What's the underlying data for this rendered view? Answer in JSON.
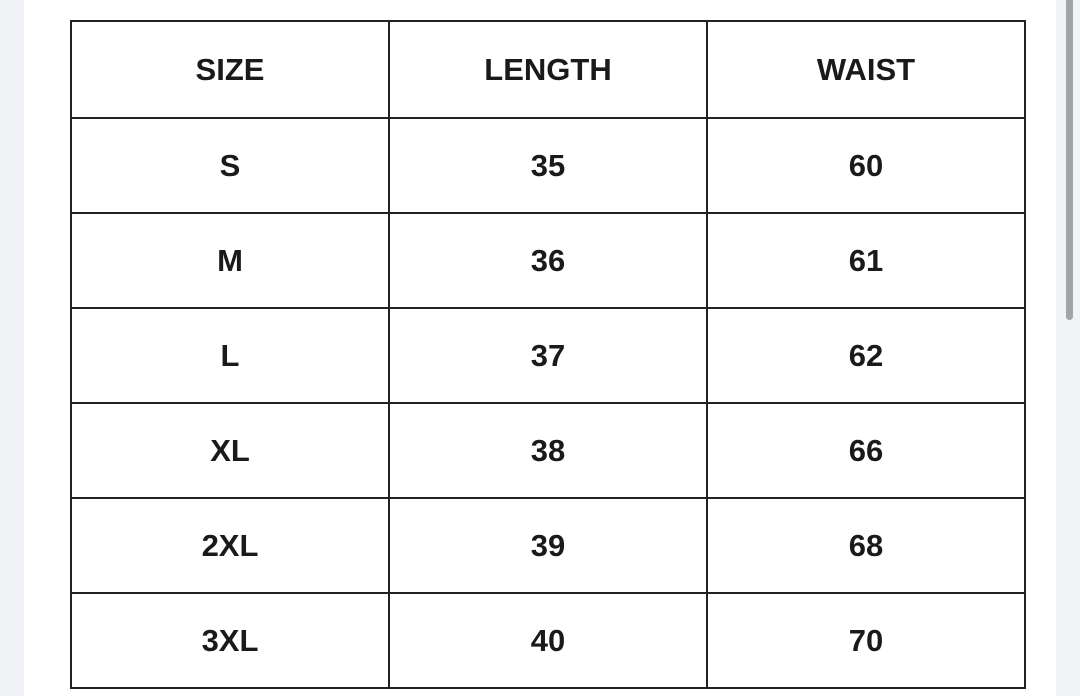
{
  "table": {
    "headers": [
      "SIZE",
      "LENGTH",
      "WAIST"
    ],
    "rows": [
      [
        "S",
        "35",
        "60"
      ],
      [
        "M",
        "36",
        "61"
      ],
      [
        "L",
        "37",
        "62"
      ],
      [
        "XL",
        "38",
        "66"
      ],
      [
        "2XL",
        "39",
        "68"
      ],
      [
        "3XL",
        "40",
        "70"
      ]
    ]
  }
}
